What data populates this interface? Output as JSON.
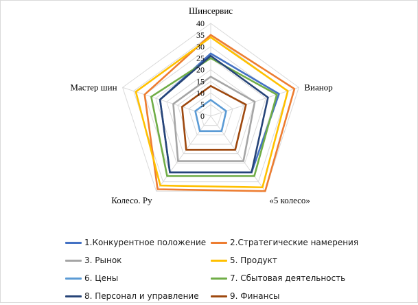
{
  "chart_data": {
    "type": "radar",
    "axes": [
      "Шинсервис",
      "Вианор",
      "«5 колесо»",
      "Колесо. Ру",
      "Мастер шин"
    ],
    "r_ticks": [
      0,
      5,
      10,
      15,
      20,
      25,
      30,
      35,
      40
    ],
    "r_range": [
      0,
      40
    ],
    "grid": true,
    "legend_position": "bottom",
    "series": [
      {
        "name": "1.Конкурентное положение",
        "color": "#4472C4",
        "values": [
          27,
          31,
          30,
          30,
          23
        ]
      },
      {
        "name": "2.Стратегические намерения",
        "color": "#ED7D31",
        "values": [
          35,
          38,
          40,
          39,
          30
        ]
      },
      {
        "name": "3. Рынок",
        "color": "#A5A5A5",
        "values": [
          17,
          20,
          24,
          24,
          17
        ]
      },
      {
        "name": "5. Продукт",
        "color": "#FFC000",
        "values": [
          34,
          35,
          38,
          37,
          34
        ]
      },
      {
        "name": "6. Цены",
        "color": "#5B9BD5",
        "values": [
          7,
          7,
          8,
          8,
          7
        ]
      },
      {
        "name": "7. Сбытовая деятельность",
        "color": "#70AD47",
        "values": [
          25,
          30,
          32,
          32,
          27
        ]
      },
      {
        "name": "8. Персонал и управление",
        "color": "#264478",
        "values": [
          26,
          26,
          30,
          30,
          23
        ]
      },
      {
        "name": "9. Финансы",
        "color": "#9E480E",
        "values": [
          13,
          16,
          18,
          18,
          13
        ]
      }
    ]
  }
}
